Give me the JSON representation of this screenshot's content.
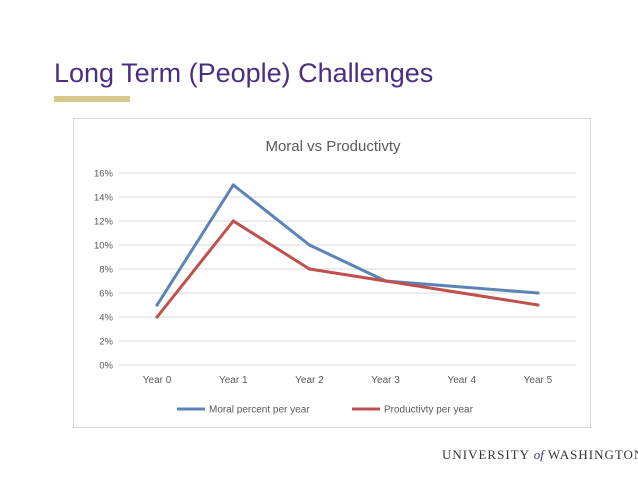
{
  "slide": {
    "title": "Long Term (People) Challenges",
    "footer": {
      "left": "UNIVERSITY",
      "of": "of",
      "right": "WASHINGTON"
    }
  },
  "colors": {
    "title": "#4b2e83",
    "accent_rule": "#d9c88a",
    "series_moral": "#5b83b8",
    "series_productivity": "#c0504d",
    "gridline": "#d9d9d9",
    "axis_text": "#595959"
  },
  "chart_data": {
    "type": "line",
    "title": "Moral vs Productivty",
    "xlabel": "",
    "ylabel": "",
    "categories": [
      "Year 0",
      "Year 1",
      "Year 2",
      "Year 3",
      "Year 4",
      "Year 5"
    ],
    "series": [
      {
        "name": "Moral percent per year",
        "values": [
          0.05,
          0.15,
          0.1,
          0.07,
          0.065,
          0.06
        ]
      },
      {
        "name": "Productivty per year",
        "values": [
          0.04,
          0.12,
          0.08,
          0.07,
          0.06,
          0.05
        ]
      }
    ],
    "ylim": [
      0,
      0.16
    ],
    "yticks": [
      "0%",
      "2%",
      "4%",
      "6%",
      "8%",
      "10%",
      "12%",
      "14%",
      "16%"
    ],
    "grid": true,
    "legend": "bottom"
  }
}
